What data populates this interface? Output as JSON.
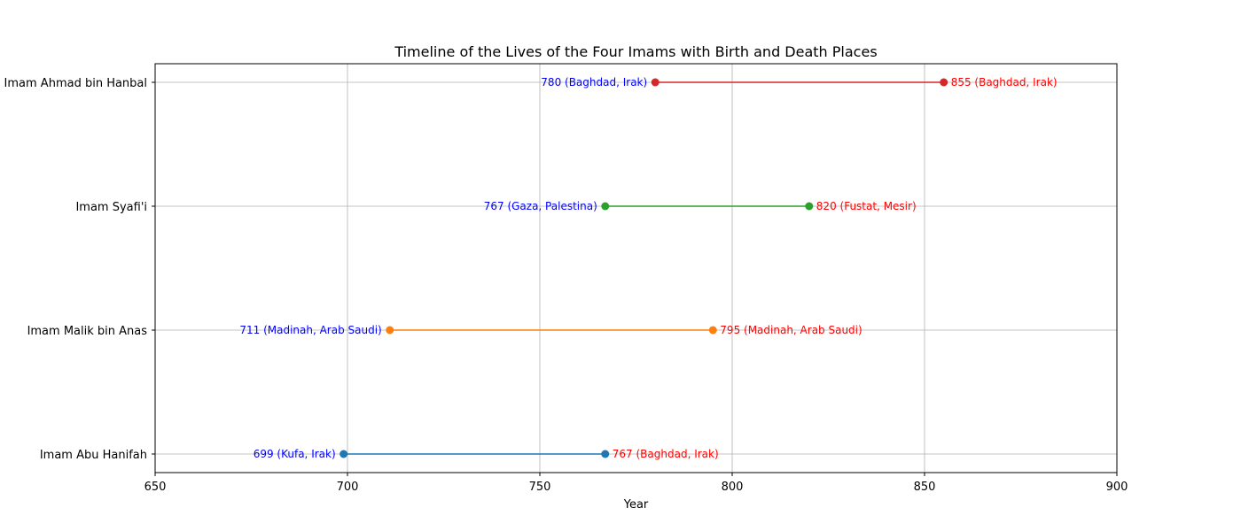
{
  "chart_data": {
    "type": "line",
    "title": "Timeline of the Lives of the Four Imams with Birth and Death Places",
    "xlabel": "Year",
    "ylabel": "",
    "xlim": [
      650,
      900
    ],
    "xticks": [
      650,
      700,
      750,
      800,
      850,
      900
    ],
    "grid": true,
    "birth_label_color": "#0000ff",
    "death_label_color": "#ff0000",
    "series": [
      {
        "name": "Imam Abu Hanifah",
        "birth": 699,
        "death": 767,
        "birth_label": "699 (Kufa, Irak)",
        "death_label": "767 (Baghdad, Irak)",
        "color": "#1f77b4"
      },
      {
        "name": "Imam Malik bin Anas",
        "birth": 711,
        "death": 795,
        "birth_label": "711 (Madinah, Arab Saudi)",
        "death_label": "795 (Madinah, Arab Saudi)",
        "color": "#ff7f0e"
      },
      {
        "name": "Imam Syafi'i",
        "birth": 767,
        "death": 820,
        "birth_label": "767 (Gaza, Palestina)",
        "death_label": "820 (Fustat, Mesir)",
        "color": "#2ca02c"
      },
      {
        "name": "Imam Ahmad bin Hanbal",
        "birth": 780,
        "death": 855,
        "birth_label": "780 (Baghdad, Irak)",
        "death_label": "855 (Baghdad, Irak)",
        "color": "#d62728"
      }
    ]
  }
}
